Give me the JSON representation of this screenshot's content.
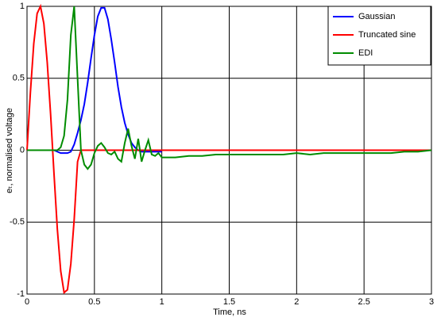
{
  "chart_data": {
    "type": "line",
    "xlabel": "Time, ns",
    "ylabel": "eₜ, normalised voltage",
    "x": [
      0,
      0.025,
      0.05,
      0.075,
      0.1,
      0.125,
      0.15,
      0.175,
      0.2,
      0.225,
      0.25,
      0.275,
      0.3,
      0.325,
      0.35,
      0.375,
      0.4,
      0.425,
      0.45,
      0.475,
      0.5,
      0.525,
      0.55,
      0.575,
      0.6,
      0.625,
      0.65,
      0.675,
      0.7,
      0.725,
      0.75,
      0.775,
      0.8,
      0.825,
      0.85,
      0.875,
      0.9,
      0.925,
      0.95,
      0.975,
      1.0,
      1.1,
      1.2,
      1.3,
      1.4,
      1.5,
      1.6,
      1.7,
      1.8,
      1.9,
      2.0,
      2.1,
      2.2,
      2.3,
      2.4,
      2.5,
      2.6,
      2.7,
      2.8,
      2.9,
      3.0
    ],
    "series": [
      {
        "name": "Gaussian",
        "color": "#0000ff",
        "values": [
          0,
          0,
          0,
          0,
          0,
          0,
          0,
          0,
          0,
          -0.01,
          -0.02,
          -0.02,
          -0.02,
          -0.01,
          0.04,
          0.12,
          0.21,
          0.32,
          0.47,
          0.64,
          0.8,
          0.93,
          0.99,
          0.99,
          0.91,
          0.77,
          0.61,
          0.44,
          0.3,
          0.19,
          0.11,
          0.05,
          0.02,
          0,
          -0.01,
          -0.01,
          -0.01,
          -0.01,
          -0.01,
          -0.01,
          -0.01,
          null,
          null,
          null,
          null,
          null,
          null,
          null,
          null,
          null,
          null,
          null,
          null,
          null,
          null,
          null,
          null,
          null,
          null,
          null,
          null
        ]
      },
      {
        "name": "Truncated sine",
        "color": "#ff0000",
        "values": [
          0,
          0.4,
          0.74,
          0.95,
          1,
          0.88,
          0.61,
          0.25,
          -0.16,
          -0.55,
          -0.84,
          -0.99,
          -0.97,
          -0.79,
          -0.48,
          -0.08,
          0,
          0,
          0,
          0,
          0,
          0,
          0,
          0,
          0,
          0,
          0,
          0,
          0,
          0,
          0,
          0,
          0,
          0,
          0,
          0,
          0,
          0,
          0,
          0,
          0,
          0,
          0,
          0,
          0,
          0,
          0,
          0,
          0,
          0,
          0,
          0,
          0,
          0,
          0,
          0,
          0,
          0,
          0,
          0,
          0
        ]
      },
      {
        "name": "EDI",
        "color": "#008c00",
        "values": [
          0,
          0,
          0,
          0,
          0,
          0,
          0,
          0,
          0,
          0,
          0.02,
          0.1,
          0.35,
          0.8,
          1,
          0.5,
          0,
          -0.1,
          -0.13,
          -0.1,
          -0.02,
          0.03,
          0.05,
          0.02,
          -0.02,
          -0.03,
          -0.01,
          -0.06,
          -0.08,
          0.05,
          0.15,
          0.03,
          -0.06,
          0.08,
          -0.08,
          0,
          0.07,
          -0.03,
          -0.04,
          -0.02,
          -0.05,
          -0.05,
          -0.04,
          -0.04,
          -0.03,
          -0.03,
          -0.03,
          -0.03,
          -0.03,
          -0.03,
          -0.02,
          -0.03,
          -0.02,
          -0.02,
          -0.02,
          -0.02,
          -0.02,
          -0.02,
          -0.01,
          -0.01,
          0
        ]
      }
    ],
    "xlim": [
      0,
      3
    ],
    "xticks": [
      0,
      0.5,
      1,
      1.5,
      2,
      2.5,
      3
    ],
    "ylim": [
      -1,
      1
    ],
    "yticks": [
      -1,
      -0.5,
      0,
      0.5,
      1
    ],
    "grid": true,
    "legend": "northeast"
  }
}
